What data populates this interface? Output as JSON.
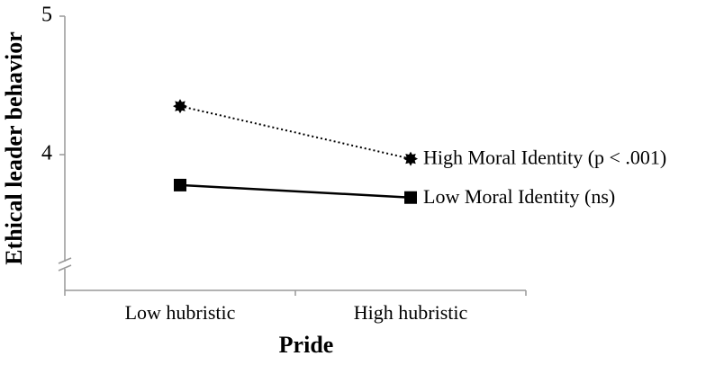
{
  "chart_data": {
    "type": "line",
    "x_label": "Pride",
    "y_label": "Ethical leader behavior",
    "categories": [
      "Low hubristic",
      "High hubristic"
    ],
    "series": [
      {
        "name": "High Moral Identity (p < .001)",
        "color": "#000000",
        "line_style": "dotted",
        "marker": "star",
        "values": [
          4.35,
          3.97
        ]
      },
      {
        "name": "Low Moral Identity (ns)",
        "color": "#000000",
        "line_style": "solid",
        "marker": "square",
        "values": [
          3.78,
          3.69
        ]
      }
    ],
    "ylim": [
      3,
      5
    ],
    "yticks": [
      4,
      5
    ],
    "axis_break": true,
    "grid": false
  }
}
